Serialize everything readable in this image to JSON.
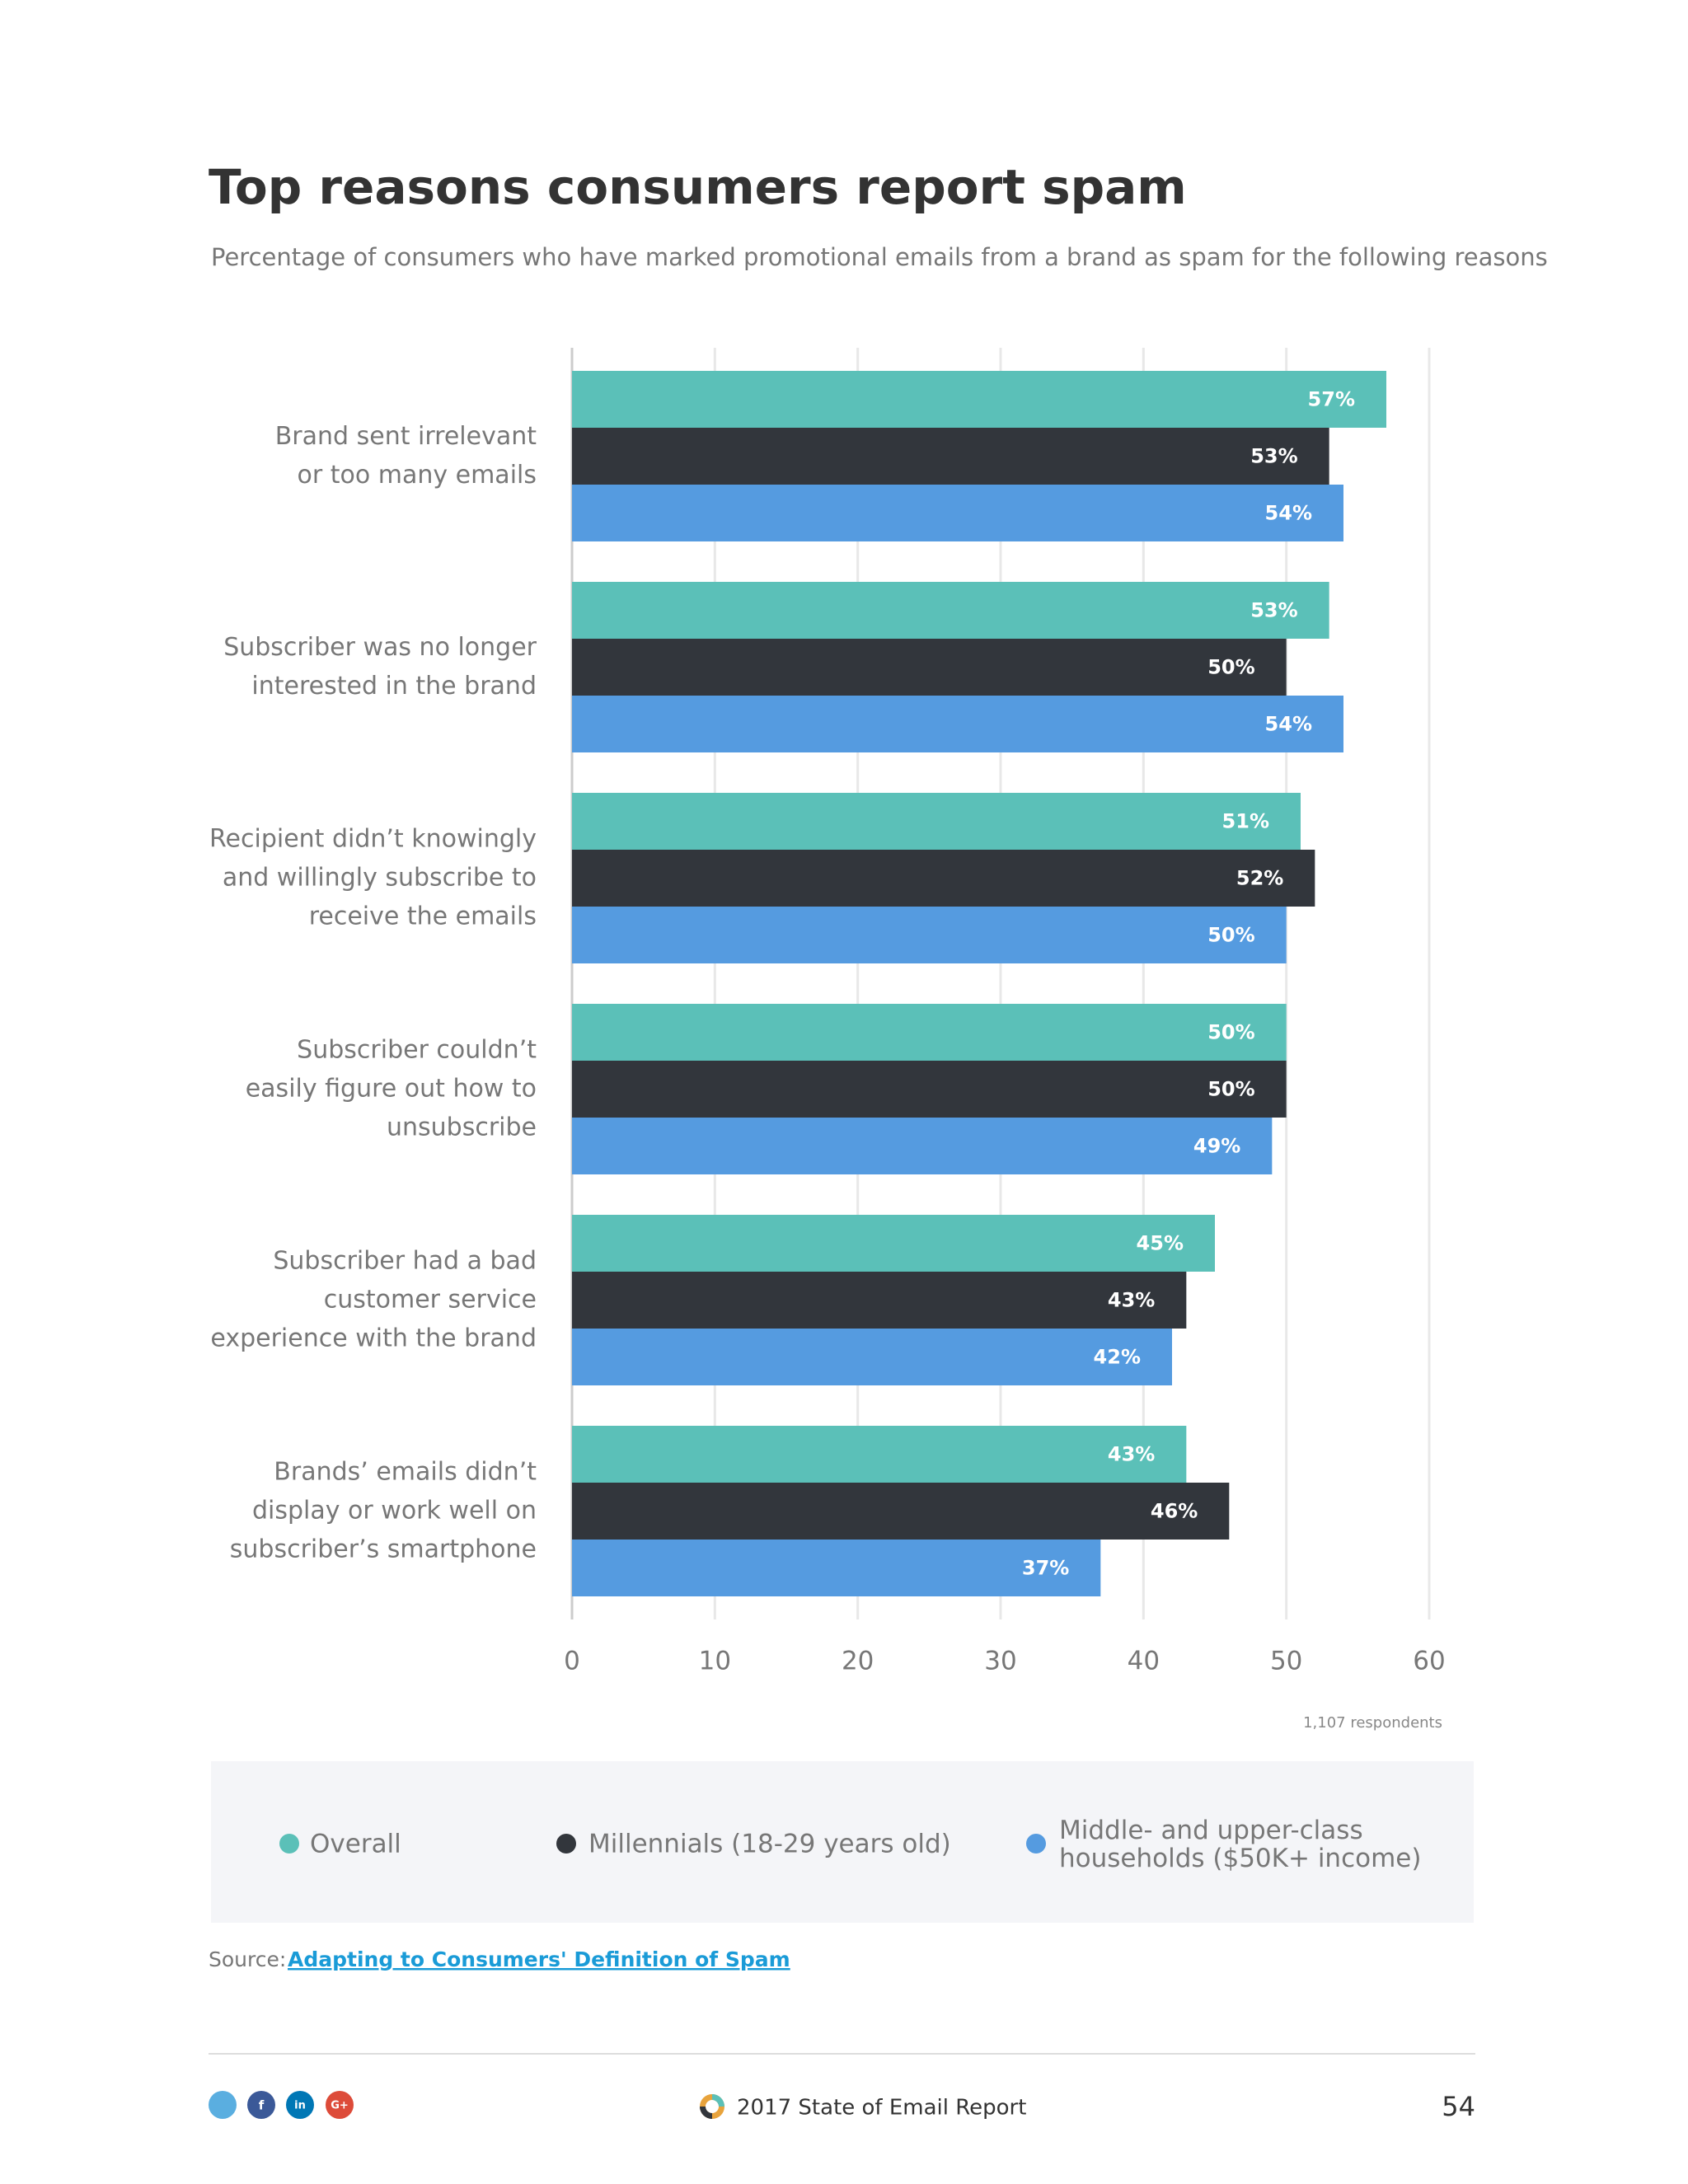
{
  "chart_data": {
    "type": "bar",
    "orientation": "horizontal",
    "title": "Top reasons consumers report spam",
    "subtitle": "Percentage of consumers who have marked promotional emails from a brand as spam for the following reasons",
    "categories": [
      "Brand sent irrelevant\nor too many emails",
      "Subscriber was no longer\ninterested in the brand",
      "Recipient didn’t knowingly\nand willingly subscribe to\nreceive the emails",
      "Subscriber couldn’t\neasily figure out how to\nunsubscribe",
      "Subscriber had a bad\ncustomer service\nexperience with the brand",
      "Brands’ emails didn’t\ndisplay or work well on\nsubscriber’s smartphone"
    ],
    "series": [
      {
        "name": "Overall",
        "color": "#5bc0b8",
        "values": [
          57,
          53,
          51,
          50,
          45,
          43
        ],
        "value_labels": [
          "57%",
          "53%",
          "51%",
          "50%",
          "45%",
          "43%"
        ]
      },
      {
        "name": "Millennials (18-29 years old)",
        "color": "#32363c",
        "values": [
          53,
          50,
          52,
          50,
          43,
          46
        ],
        "value_labels": [
          "53%",
          "50%",
          "52%",
          "50%",
          "43%",
          "46%"
        ]
      },
      {
        "name": "Middle- and upper-class\nhouseholds ($50K+ income)",
        "color": "#559be0",
        "values": [
          54,
          54,
          50,
          49,
          42,
          37
        ],
        "value_labels": [
          "54%",
          "54%",
          "50%",
          "49%",
          "42%",
          "37%"
        ]
      }
    ],
    "xlim": [
      0,
      60
    ],
    "xticks": [
      0,
      10,
      20,
      30,
      40,
      50,
      60
    ],
    "grid": true,
    "note": "1,107 respondents"
  },
  "source": {
    "label": "Source:",
    "link": "Adapting to Consumers' Definition of Spam"
  },
  "footer": {
    "social": [
      "f",
      "in",
      "G+"
    ],
    "report": "2017 State of Email Report",
    "page": "54"
  }
}
